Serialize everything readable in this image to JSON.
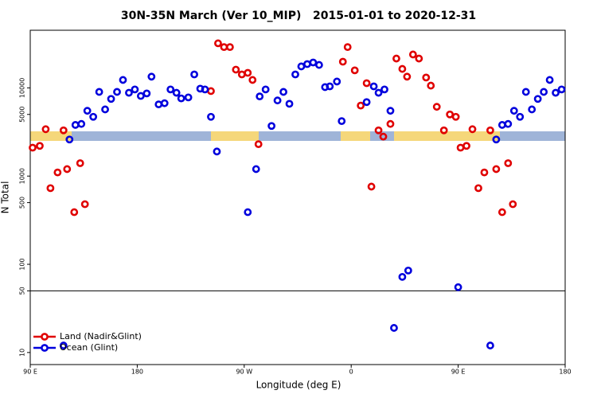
{
  "chart_data": {
    "type": "scatter",
    "title": "30N-35N March (Ver 10_MIP)   2015-01-01 to 2020-12-31",
    "x_label": "Longitude (deg E)",
    "y_label": "N Total",
    "log_y": true,
    "ylim": [
      7.3,
      45000
    ],
    "xlim": [
      90,
      540
    ],
    "yticks": [
      10,
      50,
      100,
      500,
      1000,
      5000,
      10000
    ],
    "xticks": [
      {
        "value": 90,
        "label": "90 E"
      },
      180,
      {
        "value": 270,
        "label": "90 W"
      },
      {
        "value": 360,
        "label": "0"
      },
      {
        "value": 450,
        "label": "90 E"
      },
      {
        "value": 540,
        "label": "180"
      }
    ],
    "hline": 50,
    "legend": "lower left",
    "series": [
      {
        "name": "Land (Nadir&Glint)",
        "color": "#e00000",
        "x": [
          92,
          98,
          103,
          107,
          113,
          118,
          121,
          127,
          132,
          136,
          242,
          248,
          253,
          258,
          263,
          268,
          273,
          277,
          282,
          353,
          357,
          363,
          368,
          373,
          377,
          383,
          387,
          393,
          398,
          403,
          407,
          412,
          417,
          423,
          427,
          432,
          438,
          443,
          448,
          452,
          457,
          462,
          467,
          472,
          477,
          482,
          487,
          492,
          496
        ],
        "values": [
          2100,
          2200,
          3400,
          730,
          1100,
          3300,
          1200,
          390,
          1400,
          480,
          9200,
          32000,
          29000,
          29000,
          16100,
          14200,
          14800,
          12300,
          2300,
          19800,
          29000,
          15800,
          6300,
          11300,
          760,
          3300,
          2800,
          3900,
          21500,
          16400,
          13400,
          23900,
          21500,
          13100,
          10600,
          6100,
          3300,
          5000,
          4700,
          2100,
          2200,
          3400,
          730,
          1100,
          3300,
          1200,
          390,
          1400,
          480
        ]
      },
      {
        "name": "Ocean (Glint)",
        "color": "#0000dd",
        "x": [
          118,
          123,
          128,
          133,
          138,
          143,
          148,
          153,
          158,
          163,
          168,
          173,
          178,
          183,
          188,
          192,
          198,
          203,
          208,
          213,
          217,
          223,
          228,
          233,
          237,
          242,
          247,
          273,
          280,
          283,
          288,
          293,
          298,
          303,
          308,
          313,
          318,
          323,
          328,
          333,
          338,
          342,
          348,
          352,
          373,
          379,
          383,
          388,
          393,
          396,
          403,
          408,
          450,
          477,
          482,
          487,
          492,
          497,
          502,
          507,
          512,
          517,
          522,
          527,
          532,
          537
        ],
        "values": [
          12,
          2600,
          3800,
          3900,
          5500,
          4700,
          9000,
          5700,
          7500,
          9000,
          12300,
          8800,
          9600,
          8100,
          8650,
          13400,
          6500,
          6700,
          9600,
          8800,
          7600,
          7800,
          14200,
          9800,
          9600,
          4700,
          1900,
          390,
          1200,
          8000,
          9600,
          3700,
          7200,
          9000,
          6600,
          14200,
          17500,
          18600,
          19400,
          18200,
          10200,
          10400,
          11800,
          4200,
          6900,
          10400,
          8800,
          9600,
          5500,
          19,
          72,
          85,
          55,
          12,
          2600,
          3800,
          3900,
          5500,
          4700,
          9000,
          5700,
          7500,
          9000,
          12300,
          8800,
          9600
        ]
      }
    ]
  }
}
